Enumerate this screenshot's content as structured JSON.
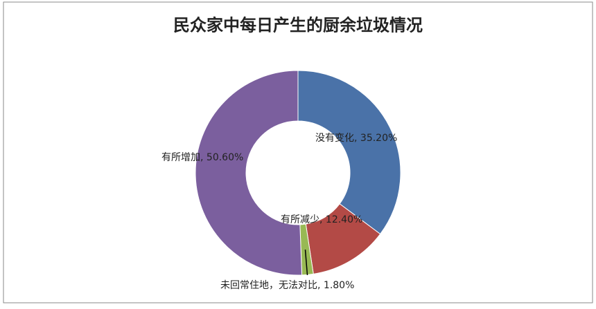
{
  "chart_data": {
    "type": "donut",
    "title": "民众家中每日产生的厨余垃圾情况",
    "categories": [
      "没有变化",
      "有所减少",
      "未回常住地，无法对比",
      "有所增加"
    ],
    "values": [
      35.2,
      12.4,
      1.8,
      50.6
    ],
    "value_labels": [
      "35.20%",
      "12.40%",
      "1.80%",
      "50.60%"
    ],
    "label_separator": ", ",
    "colors": [
      "#4a72a8",
      "#b34a46",
      "#98b954",
      "#7b5f9e"
    ]
  }
}
